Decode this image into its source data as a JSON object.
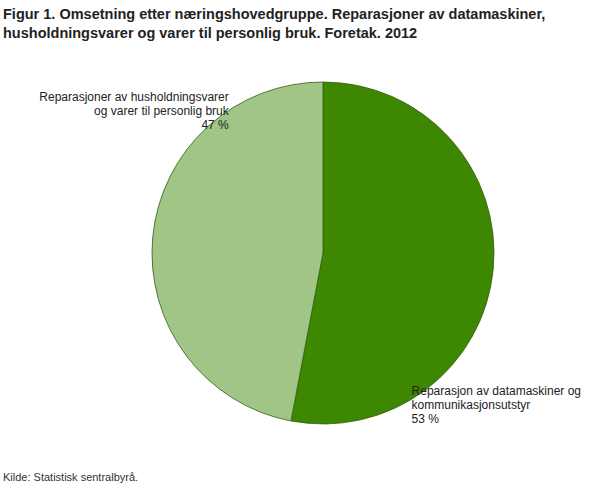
{
  "chart_data": {
    "type": "pie",
    "title": "Figur 1. Omsetning etter næringshovedgruppe. Reparasjoner av datamaskiner, husholdningsvarer og varer til personlig bruk. Foretak. 2012",
    "categories": [
      "Reparasjon av datamaskiner og kommunikasjonsutstyr",
      "Reparasjoner av husholdningsvarer og varer til personlig bruk"
    ],
    "values": [
      53,
      47
    ],
    "value_labels": [
      "53 %",
      "47 %"
    ],
    "colors": [
      "#3e8700",
      "#a1c586"
    ],
    "data_labels": true,
    "source": "Kilde: Statistisk sentralbyrå."
  }
}
